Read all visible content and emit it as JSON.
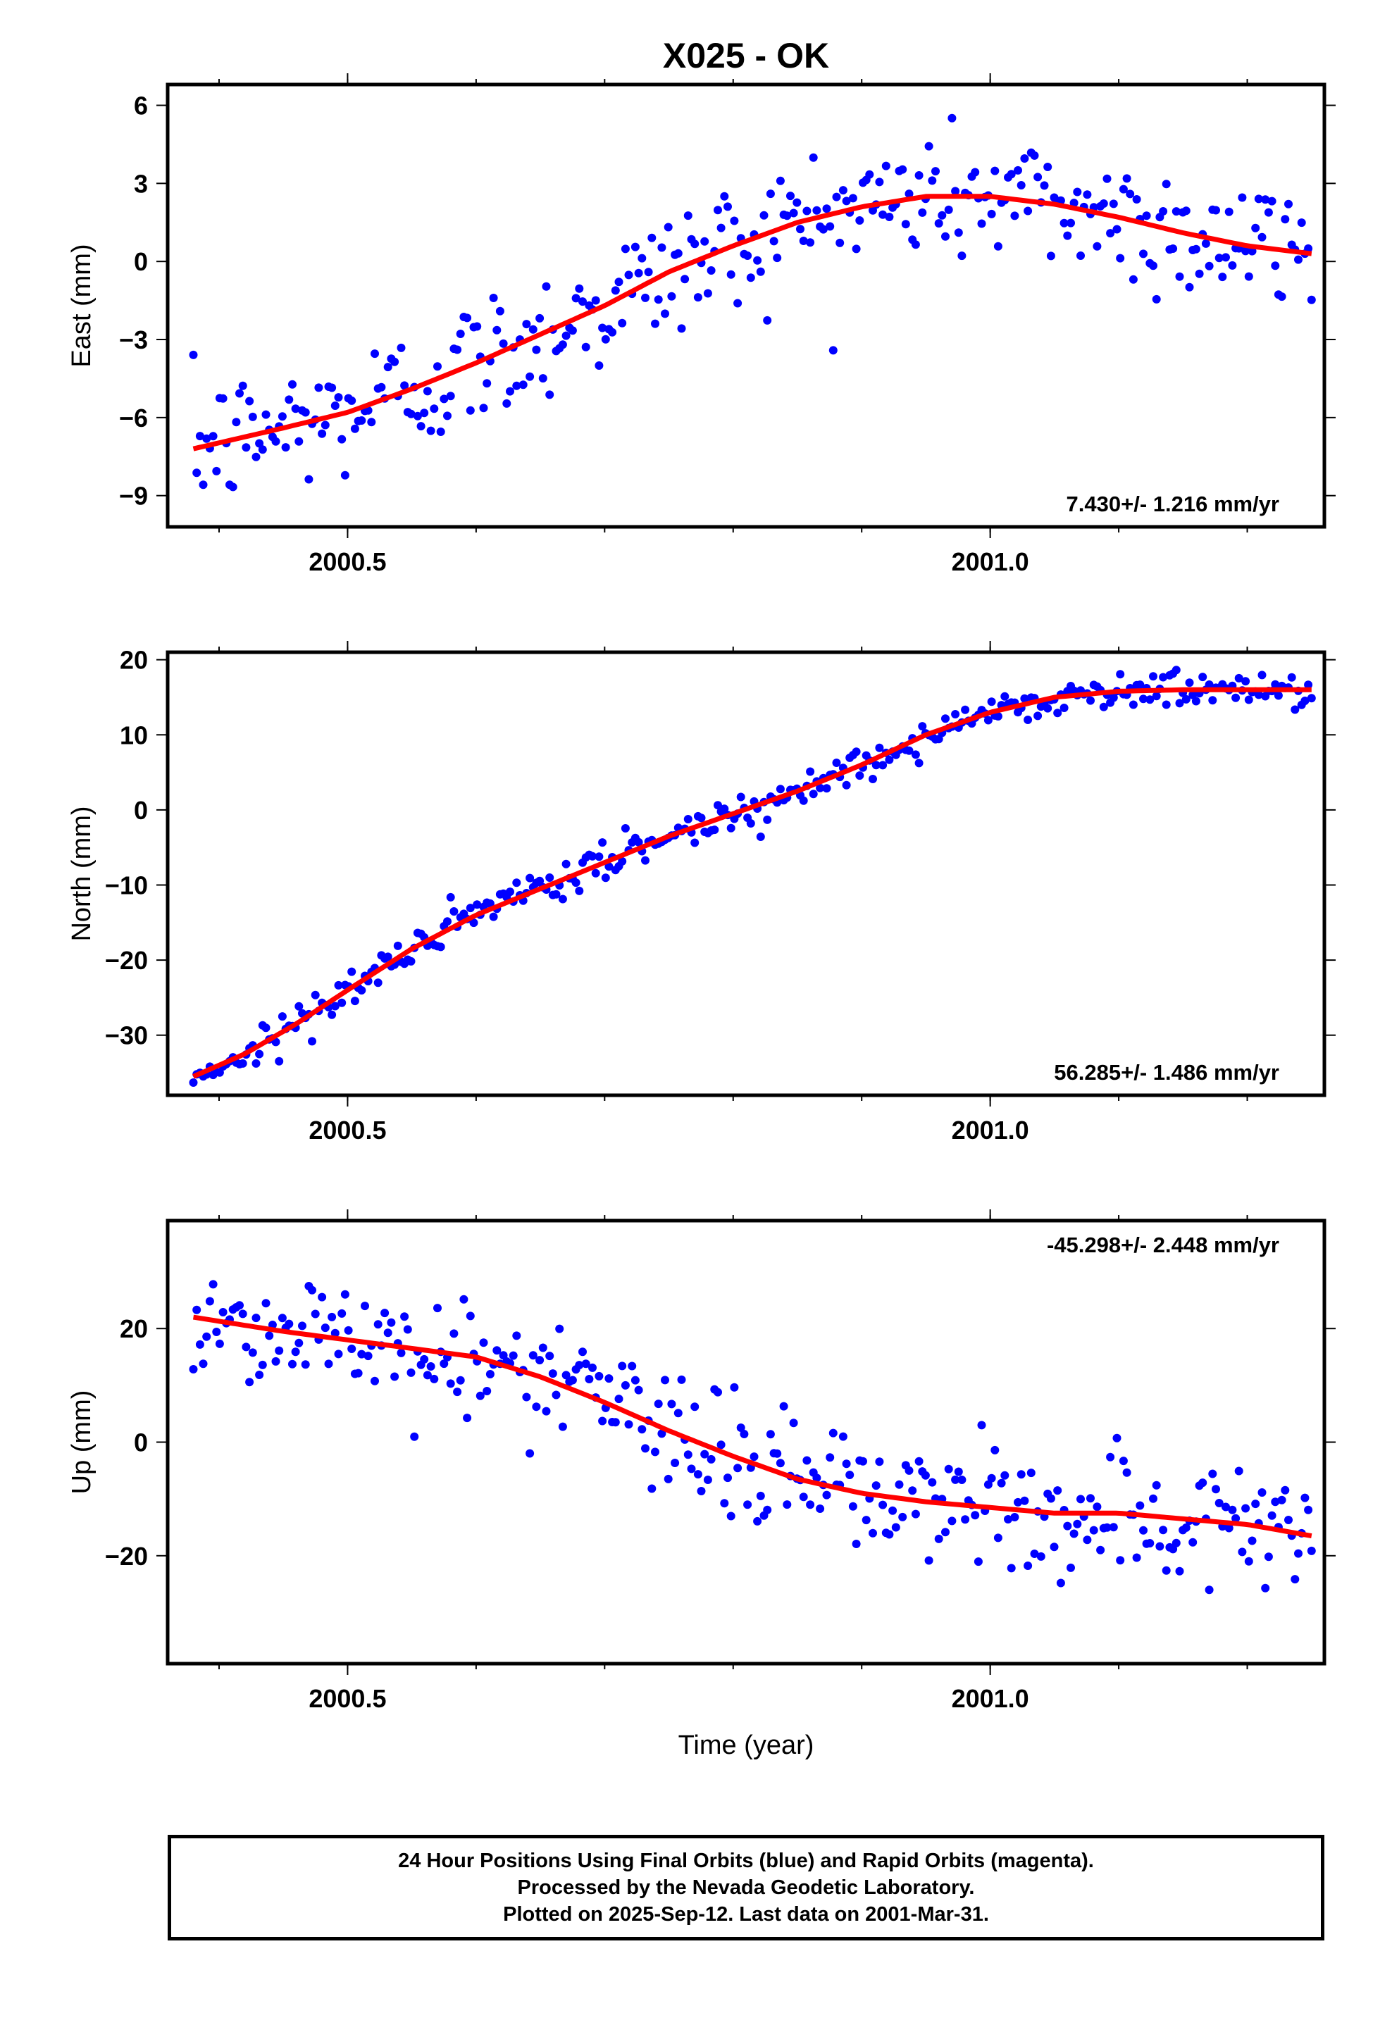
{
  "title": "X025 - OK",
  "colors": {
    "data": "#0000ff",
    "fit": "#ff0000",
    "frame": "#000000"
  },
  "xaxis": {
    "label": "Time (year)",
    "range": [
      2000.36,
      2001.26
    ],
    "major_ticks": [
      2000.5,
      2001.0
    ],
    "major_tick_labels": [
      "2000.5",
      "2001.0"
    ],
    "minor_step": 0.1
  },
  "chart_data": [
    {
      "type": "scatter",
      "name": "east",
      "ylabel": "East (mm)",
      "ylim": [
        -10.2,
        6.8
      ],
      "yticks": [
        6,
        3,
        0,
        -3,
        -6,
        -9
      ],
      "ytick_labels": [
        "6",
        "3",
        "0",
        "−3",
        "−6",
        "−9"
      ],
      "rate": "7.430+/- 1.216 mm/yr",
      "rate_position": "bottom-right",
      "fit_x": [
        2000.38,
        2000.45,
        2000.5,
        2000.55,
        2000.6,
        2000.65,
        2000.7,
        2000.75,
        2000.8,
        2000.85,
        2000.9,
        2000.95,
        2001.0,
        2001.05,
        2001.1,
        2001.15,
        2001.2,
        2001.25
      ],
      "fit_y": [
        -7.2,
        -6.4,
        -5.8,
        -4.9,
        -3.9,
        -2.8,
        -1.7,
        -0.4,
        0.6,
        1.5,
        2.1,
        2.5,
        2.5,
        2.2,
        1.7,
        1.1,
        0.6,
        0.3
      ],
      "noise_sd": 1.3
    },
    {
      "type": "scatter",
      "name": "north",
      "ylabel": "North (mm)",
      "ylim": [
        -38,
        21
      ],
      "yticks": [
        20,
        10,
        0,
        -10,
        -20,
        -30
      ],
      "ytick_labels": [
        "20",
        "10",
        "0",
        "−10",
        "−20",
        "−30"
      ],
      "rate": "56.285+/- 1.486 mm/yr",
      "rate_position": "bottom-right",
      "fit_x": [
        2000.38,
        2000.42,
        2000.46,
        2000.5,
        2000.55,
        2000.6,
        2000.65,
        2000.7,
        2000.75,
        2000.8,
        2000.85,
        2000.9,
        2000.95,
        2001.0,
        2001.05,
        2001.1,
        2001.15,
        2001.2,
        2001.25
      ],
      "fit_y": [
        -35.5,
        -32.5,
        -28.5,
        -24,
        -18.5,
        -14,
        -10.5,
        -7,
        -3.5,
        -0.5,
        2.5,
        6,
        10,
        13,
        15,
        15.8,
        16,
        16,
        16
      ],
      "noise_sd": 1.2
    },
    {
      "type": "scatter",
      "name": "up",
      "ylabel": "Up (mm)",
      "ylim": [
        -39,
        39
      ],
      "yticks": [
        20,
        0,
        -20
      ],
      "ytick_labels": [
        "20",
        "0",
        "−20"
      ],
      "rate": "-45.298+/- 2.448 mm/yr",
      "rate_position": "top-right",
      "fit_x": [
        2000.38,
        2000.45,
        2000.5,
        2000.55,
        2000.6,
        2000.65,
        2000.7,
        2000.75,
        2000.8,
        2000.85,
        2000.9,
        2000.95,
        2001.0,
        2001.05,
        2001.1,
        2001.15,
        2001.2,
        2001.25
      ],
      "fit_y": [
        22,
        19.5,
        18,
        16.5,
        15,
        11.5,
        7,
        2,
        -2.5,
        -6.5,
        -9,
        -10.5,
        -11.5,
        -12.5,
        -12.5,
        -13.5,
        -14.5,
        -16.5
      ],
      "noise_sd": 5.5
    }
  ],
  "footer": {
    "line1": "24 Hour Positions Using Final Orbits (blue) and Rapid Orbits (magenta).",
    "line2": "Processed by the Nevada Geodetic Laboratory.",
    "line3": "Plotted on 2025-Sep-12. Last data on 2001-Mar-31."
  }
}
